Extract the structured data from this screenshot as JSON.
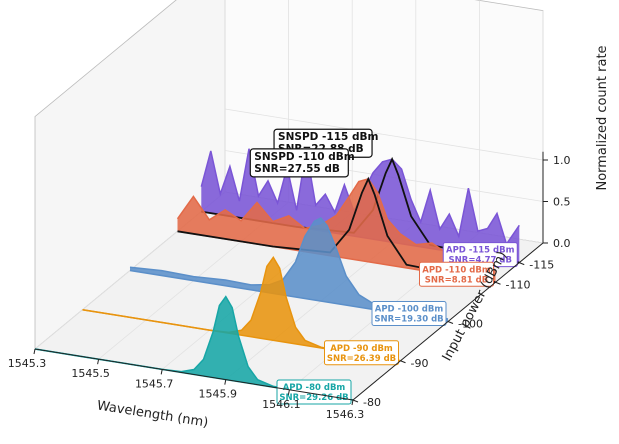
{
  "chart_data": {
    "type": "area",
    "xlabel": "Wavelength (nm)",
    "ylabel": "Input power (dBm)",
    "zlabel": "Normalized count rate",
    "x_ticks": [
      "1545.3",
      "1545.5",
      "1545.7",
      "1545.9",
      "1546.1",
      "1546.3"
    ],
    "y_ticks": [
      "-80",
      "-90",
      "-100",
      "-110",
      "-115"
    ],
    "z_ticks": [
      "0.0",
      "0.5",
      "1.0"
    ],
    "xlim": [
      1545.3,
      1546.3
    ],
    "zlim": [
      0,
      1.1
    ],
    "grid": true,
    "series": [
      {
        "name": "APD -80 dBm",
        "power": -80,
        "color": "#17a6a6",
        "x": [
          1545.3,
          1545.45,
          1545.6,
          1545.7,
          1545.76,
          1545.8,
          1545.83,
          1545.86,
          1545.88,
          1545.9,
          1545.92,
          1545.94,
          1545.97,
          1546.0,
          1546.05,
          1546.2,
          1546.3
        ],
        "values": [
          0.0,
          0.0,
          0.0,
          0.0,
          0.01,
          0.06,
          0.2,
          0.55,
          0.88,
          1.0,
          0.88,
          0.55,
          0.2,
          0.06,
          0.01,
          0.0,
          0.0
        ],
        "annotation": [
          "APD -80 dBm",
          "SNR=29.26 dB"
        ]
      },
      {
        "name": "APD -90 dBm",
        "power": -90,
        "color": "#e8940f",
        "x": [
          1545.3,
          1545.45,
          1545.6,
          1545.7,
          1545.76,
          1545.8,
          1545.83,
          1545.86,
          1545.88,
          1545.9,
          1545.92,
          1545.94,
          1545.97,
          1546.0,
          1546.05,
          1546.2,
          1546.3
        ],
        "values": [
          0.0,
          0.0,
          0.0,
          0.0,
          0.01,
          0.06,
          0.2,
          0.55,
          0.88,
          1.0,
          0.88,
          0.55,
          0.2,
          0.06,
          0.01,
          0.0,
          0.0
        ],
        "annotation": [
          "APD -90 dBm",
          "SNR=26.39 dB"
        ]
      },
      {
        "name": "APD -100 dBm",
        "power": -100,
        "color": "#5b8fc9",
        "x": [
          1545.3,
          1545.4,
          1545.5,
          1545.6,
          1545.68,
          1545.74,
          1545.78,
          1545.82,
          1545.85,
          1545.88,
          1545.9,
          1545.92,
          1545.95,
          1545.98,
          1546.02,
          1546.06,
          1546.12,
          1546.2,
          1546.3
        ],
        "values": [
          0.04,
          0.06,
          0.05,
          0.07,
          0.06,
          0.1,
          0.18,
          0.42,
          0.75,
          0.95,
          1.0,
          0.92,
          0.65,
          0.35,
          0.15,
          0.08,
          0.06,
          0.05,
          0.03
        ],
        "annotation": [
          "APD -100 dBm",
          "SNR=19.30 dB"
        ]
      },
      {
        "name": "APD -110 dBm",
        "power": -110,
        "color": "#e36a48",
        "x": [
          1545.3,
          1545.35,
          1545.4,
          1545.45,
          1545.5,
          1545.55,
          1545.6,
          1545.65,
          1545.7,
          1545.75,
          1545.8,
          1545.84,
          1545.87,
          1545.9,
          1545.93,
          1545.96,
          1546.0,
          1546.05,
          1546.1,
          1546.15,
          1546.2,
          1546.25,
          1546.3
        ],
        "values": [
          0.15,
          0.45,
          0.2,
          0.35,
          0.25,
          0.5,
          0.3,
          0.4,
          0.28,
          0.35,
          0.5,
          0.75,
          0.95,
          1.0,
          0.85,
          0.55,
          0.4,
          0.3,
          0.35,
          0.25,
          0.3,
          0.2,
          0.15
        ],
        "annotation": [
          "APD -110 dBm",
          "SNR=8.81 dB"
        ],
        "snspd": {
          "x": [
            1545.3,
            1545.6,
            1545.78,
            1545.84,
            1545.88,
            1545.9,
            1545.92,
            1545.96,
            1546.02,
            1546.3
          ],
          "values": [
            0.0,
            0.0,
            0.04,
            0.35,
            0.82,
            1.0,
            0.82,
            0.35,
            0.04,
            0.0
          ],
          "label": [
            "SNSPD -110 dBm",
            "SNR=27.55 dB"
          ]
        }
      },
      {
        "name": "APD -115 dBm",
        "power": -115,
        "color": "#7a55d6",
        "x": [
          1545.3,
          1545.33,
          1545.36,
          1545.39,
          1545.42,
          1545.45,
          1545.48,
          1545.51,
          1545.54,
          1545.57,
          1545.6,
          1545.63,
          1545.66,
          1545.69,
          1545.72,
          1545.75,
          1545.78,
          1545.81,
          1545.84,
          1545.87,
          1545.9,
          1545.93,
          1545.96,
          1545.99,
          1546.02,
          1546.05,
          1546.08,
          1546.11,
          1546.14,
          1546.17,
          1546.2,
          1546.23,
          1546.26,
          1546.3
        ],
        "values": [
          0.3,
          0.75,
          0.25,
          0.6,
          0.2,
          0.85,
          0.3,
          0.5,
          0.25,
          0.7,
          0.2,
          0.95,
          0.3,
          0.45,
          0.25,
          0.6,
          0.3,
          0.55,
          0.8,
          0.95,
          1.0,
          0.9,
          0.55,
          0.3,
          0.7,
          0.25,
          0.45,
          0.2,
          0.8,
          0.3,
          0.35,
          0.55,
          0.2,
          0.45
        ],
        "annotation": [
          "APD -115 dBm",
          "SNR=4.77 dB"
        ],
        "snspd": {
          "x": [
            1545.3,
            1545.6,
            1545.78,
            1545.84,
            1545.88,
            1545.9,
            1545.92,
            1545.96,
            1546.02,
            1546.3
          ],
          "values": [
            0.0,
            0.0,
            0.04,
            0.35,
            0.82,
            1.0,
            0.82,
            0.35,
            0.04,
            0.0
          ],
          "label": [
            "SNSPD -115 dBm",
            "SNR=22.88 dB"
          ]
        }
      }
    ]
  }
}
